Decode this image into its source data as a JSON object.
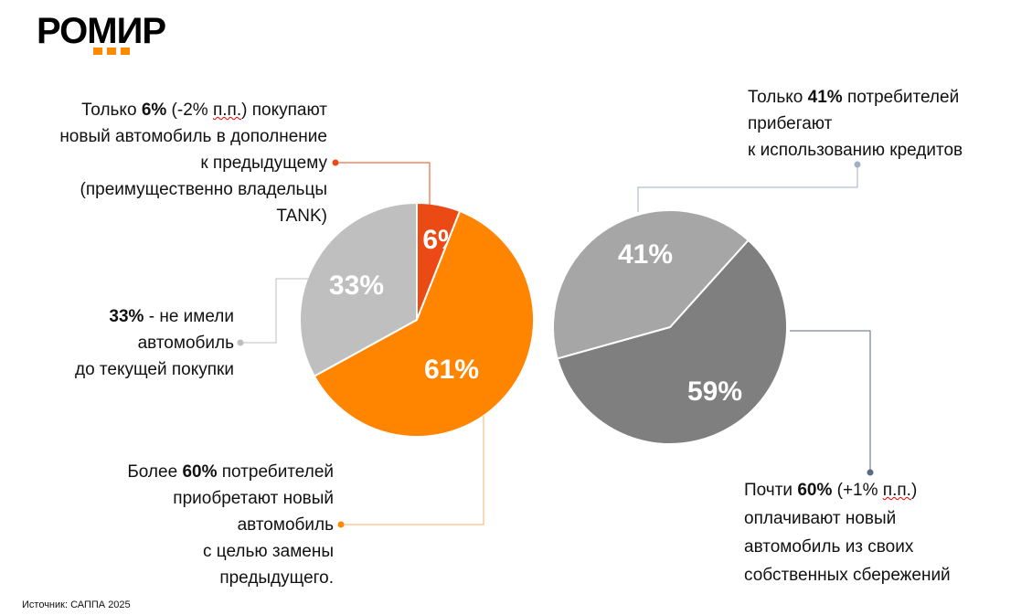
{
  "logo": "РОМИР",
  "source": "Источник: САППА 2025",
  "colors": {
    "accent": "#ff8a00",
    "red": "#ec4a14",
    "light_grey": "#bfbfbf",
    "mid_grey": "#a6a6a6",
    "dark_grey": "#7f7f7f"
  },
  "chart_data": [
    {
      "type": "pie",
      "title": "",
      "slices": [
        {
          "label": "6%",
          "value": 6,
          "color": "#ec4a14"
        },
        {
          "label": "61%",
          "value": 61,
          "color": "#ff8500"
        },
        {
          "label": "33%",
          "value": 33,
          "color": "#bfbfbf"
        }
      ]
    },
    {
      "type": "pie",
      "title": "",
      "slices": [
        {
          "label": "59%",
          "value": 59,
          "color": "#7f7f7f"
        },
        {
          "label": "41%",
          "value": 41,
          "color": "#a6a6a6"
        }
      ]
    }
  ],
  "notes": {
    "n6": {
      "a": "Только ",
      "b": "6%",
      "c": " (-2% ",
      "d": "п.п.",
      "e": ") покупают",
      "l2": "новый автомобиль в дополнение",
      "l3": "к предыдущему",
      "l4": "(преимущественно владельцы",
      "l5": "TANK)"
    },
    "n33": {
      "b": "33%",
      "a": " - не имели",
      "l2": "автомобиль",
      "l3": "до текущей покупки"
    },
    "n61": {
      "a": "Более ",
      "b": "60%",
      "c": " потребителей",
      "l2": "приобретают новый",
      "l3": "автомобиль",
      "l4": "с целью замены",
      "l5": "предыдущего."
    },
    "n41": {
      "a": "Только ",
      "b": "41%",
      "c": " потребителей",
      "l2": "прибегают",
      "l3": "к использованию кредитов"
    },
    "n59": {
      "a": "Почти ",
      "b": "60%",
      "c": " (+1% ",
      "d": "п.п.",
      "e": ")",
      "l2": "оплачивают новый",
      "l3": "автомобиль из своих",
      "l4": "собственных сбережений"
    }
  }
}
